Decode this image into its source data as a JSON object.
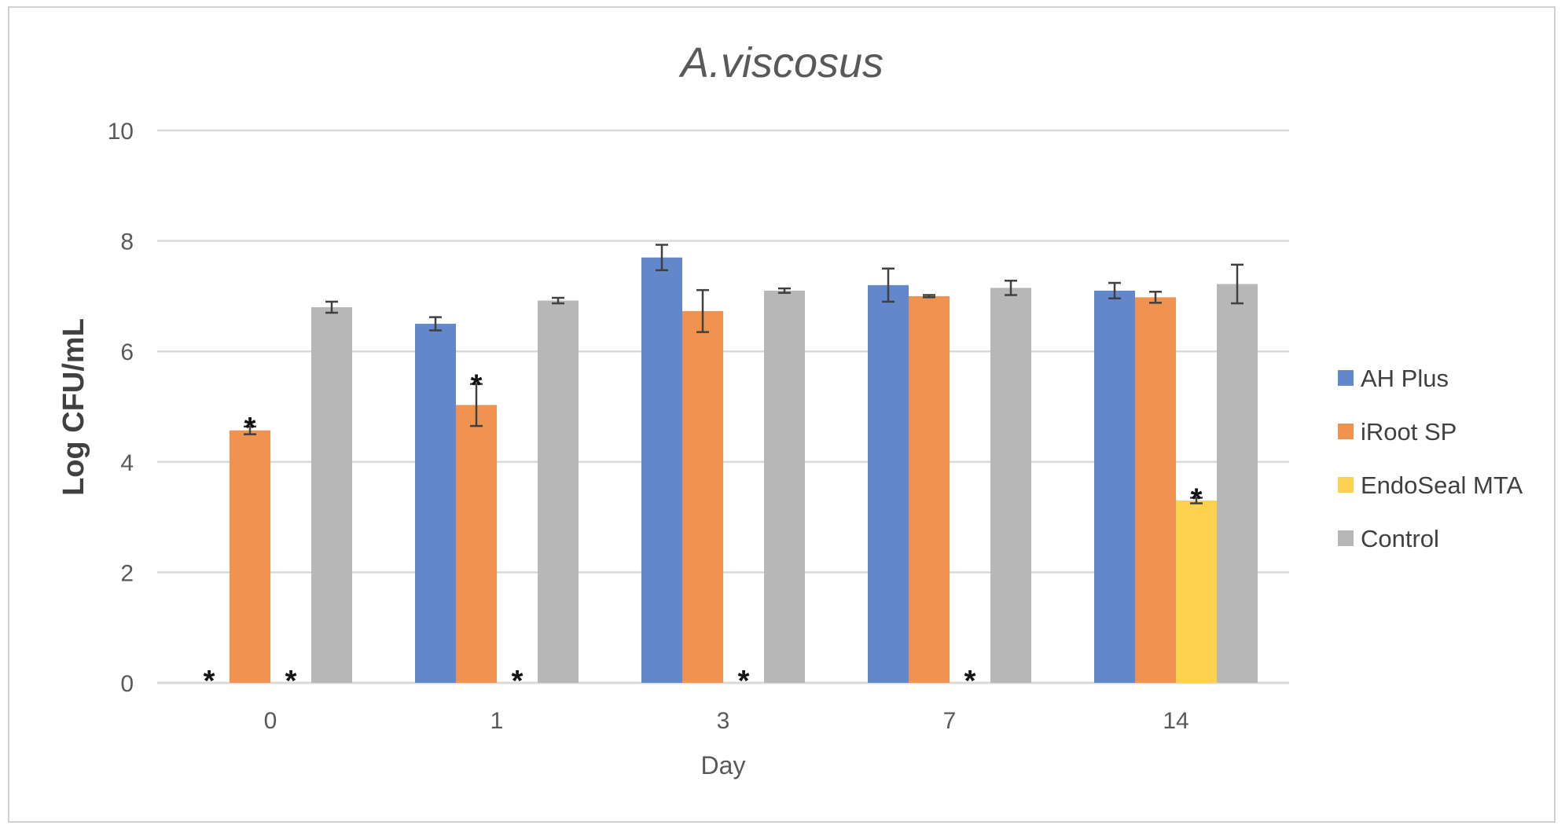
{
  "chart_data": {
    "type": "bar",
    "title": "A.viscosus",
    "xlabel": "Day",
    "ylabel": "Log CFU/mL",
    "ylim": [
      0,
      10
    ],
    "yticks": [
      "0",
      "2",
      "4",
      "6",
      "8",
      "10"
    ],
    "categories": [
      "0",
      "1",
      "3",
      "7",
      "14"
    ],
    "grid": true,
    "legend_position": "right",
    "star_symbol": "*",
    "series": [
      {
        "name": "AH Plus",
        "color": "#6287cb",
        "values": [
          0,
          6.5,
          7.7,
          7.2,
          7.1
        ],
        "errors": [
          0,
          0.12,
          0.23,
          0.3,
          0.14
        ],
        "stars": [
          true,
          false,
          false,
          false,
          false
        ]
      },
      {
        "name": "iRoot SP",
        "color": "#f09351",
        "values": [
          4.57,
          5.03,
          6.73,
          7.0,
          6.98
        ],
        "errors": [
          0.07,
          0.38,
          0.38,
          0.02,
          0.1
        ],
        "stars": [
          true,
          true,
          false,
          false,
          false
        ]
      },
      {
        "name": "EndoSeal MTA",
        "color": "#fdd14e",
        "values": [
          0,
          0,
          0,
          0,
          3.3
        ],
        "errors": [
          0,
          0,
          0,
          0,
          0.05
        ],
        "stars": [
          true,
          true,
          true,
          true,
          true
        ]
      },
      {
        "name": "Control",
        "color": "#b7b7b7",
        "values": [
          6.8,
          6.92,
          7.1,
          7.15,
          7.22
        ],
        "errors": [
          0.1,
          0.05,
          0.04,
          0.13,
          0.35
        ],
        "stars": [
          false,
          false,
          false,
          false,
          false
        ]
      }
    ]
  }
}
